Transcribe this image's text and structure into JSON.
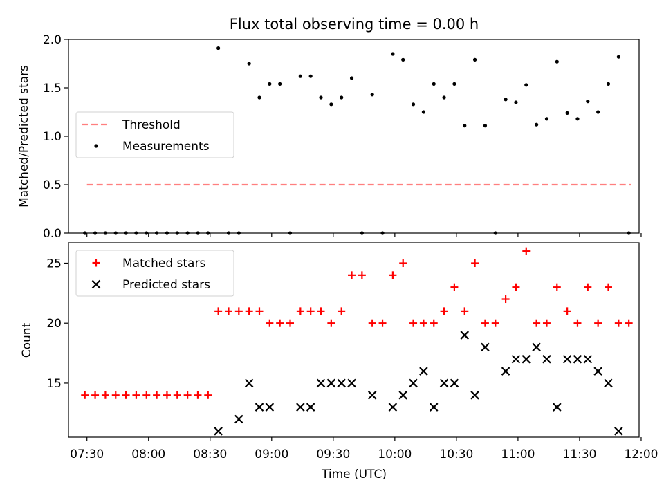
{
  "chart_data": [
    {
      "type": "scatter",
      "title": "Flux total observing time = 0.00 h",
      "xlabel": "",
      "ylabel": "Matched/Predicted stars",
      "xlim": [
        "07:21",
        "11:59"
      ],
      "ylim": [
        0,
        2.0
      ],
      "yticks": [
        "0.0",
        "0.5",
        "1.0",
        "1.5",
        "2.0"
      ],
      "legend_position": "center-left",
      "grid": false,
      "series": [
        {
          "name": "Threshold",
          "kind": "line-dashed",
          "color": "#ff7f7f",
          "x": [
            "07:30",
            "11:55"
          ],
          "y": [
            0.5,
            0.5
          ]
        },
        {
          "name": "Measurements",
          "kind": "points",
          "color": "#000000",
          "x": [
            "07:29",
            "07:34",
            "07:39",
            "07:44",
            "07:49",
            "07:54",
            "07:59",
            "08:04",
            "08:09",
            "08:14",
            "08:19",
            "08:24",
            "08:29",
            "08:34",
            "08:39",
            "08:44",
            "08:49",
            "08:54",
            "08:59",
            "09:04",
            "09:09",
            "09:14",
            "09:19",
            "09:24",
            "09:29",
            "09:34",
            "09:39",
            "09:44",
            "09:49",
            "09:54",
            "09:59",
            "10:04",
            "10:09",
            "10:14",
            "10:19",
            "10:24",
            "10:29",
            "10:34",
            "10:39",
            "10:44",
            "10:49",
            "10:54",
            "10:59",
            "11:04",
            "11:09",
            "11:14",
            "11:19",
            "11:24",
            "11:29",
            "11:34",
            "11:39",
            "11:44",
            "11:49",
            "11:54"
          ],
          "y": [
            0,
            0,
            0,
            0,
            0,
            0,
            0,
            0,
            0,
            0,
            0,
            0,
            0,
            1.91,
            0,
            0,
            1.75,
            1.4,
            1.54,
            1.54,
            0,
            1.62,
            1.62,
            1.4,
            1.33,
            1.4,
            1.6,
            0,
            1.43,
            0,
            1.85,
            1.79,
            1.33,
            1.25,
            1.54,
            1.4,
            1.54,
            1.11,
            1.79,
            1.11,
            0,
            1.38,
            1.35,
            1.53,
            1.12,
            1.18,
            1.77,
            1.24,
            1.18,
            1.36,
            1.25,
            1.54,
            1.82,
            0
          ]
        }
      ]
    },
    {
      "type": "scatter",
      "title": "",
      "xlabel": "Time (UTC)",
      "ylabel": "Count",
      "xlim": [
        "07:21",
        "11:59"
      ],
      "ylim": [
        10.5,
        26.7
      ],
      "yticks": [
        "15",
        "20",
        "25"
      ],
      "xticks": [
        "07:30",
        "08:00",
        "08:30",
        "09:00",
        "09:30",
        "10:00",
        "10:30",
        "11:00",
        "11:30",
        "12:00"
      ],
      "legend_position": "upper-left",
      "grid": false,
      "series": [
        {
          "name": "Matched stars",
          "kind": "plus",
          "color": "#ff0000",
          "x": [
            "07:29",
            "07:34",
            "07:39",
            "07:44",
            "07:49",
            "07:54",
            "07:59",
            "08:04",
            "08:09",
            "08:14",
            "08:19",
            "08:24",
            "08:29",
            "08:34",
            "08:39",
            "08:44",
            "08:49",
            "08:54",
            "08:59",
            "09:04",
            "09:09",
            "09:14",
            "09:19",
            "09:24",
            "09:29",
            "09:34",
            "09:39",
            "09:44",
            "09:49",
            "09:54",
            "09:59",
            "10:04",
            "10:09",
            "10:14",
            "10:19",
            "10:24",
            "10:29",
            "10:34",
            "10:39",
            "10:44",
            "10:49",
            "10:54",
            "10:59",
            "11:04",
            "11:09",
            "11:14",
            "11:19",
            "11:24",
            "11:29",
            "11:34",
            "11:39",
            "11:44",
            "11:49",
            "11:54"
          ],
          "y": [
            14,
            14,
            14,
            14,
            14,
            14,
            14,
            14,
            14,
            14,
            14,
            14,
            14,
            21,
            21,
            21,
            21,
            21,
            20,
            20,
            20,
            21,
            21,
            21,
            20,
            21,
            24,
            24,
            20,
            20,
            24,
            25,
            20,
            20,
            20,
            21,
            23,
            21,
            25,
            20,
            20,
            22,
            23,
            26,
            20,
            20,
            23,
            21,
            20,
            23,
            20,
            23,
            20,
            20
          ]
        },
        {
          "name": "Predicted stars",
          "kind": "x",
          "color": "#000000",
          "x": [
            "08:34",
            "08:44",
            "08:49",
            "08:54",
            "08:59",
            "09:14",
            "09:19",
            "09:24",
            "09:29",
            "09:34",
            "09:39",
            "09:49",
            "09:59",
            "10:04",
            "10:09",
            "10:14",
            "10:19",
            "10:24",
            "10:29",
            "10:34",
            "10:39",
            "10:44",
            "10:54",
            "10:59",
            "11:04",
            "11:09",
            "11:14",
            "11:19",
            "11:24",
            "11:29",
            "11:34",
            "11:39",
            "11:44",
            "11:49"
          ],
          "y": [
            11,
            12,
            15,
            13,
            13,
            13,
            13,
            15,
            15,
            15,
            15,
            14,
            13,
            14,
            15,
            16,
            13,
            15,
            15,
            19,
            14,
            18,
            16,
            17,
            17,
            18,
            17,
            13,
            17,
            17,
            17,
            16,
            15,
            11
          ]
        }
      ]
    }
  ]
}
